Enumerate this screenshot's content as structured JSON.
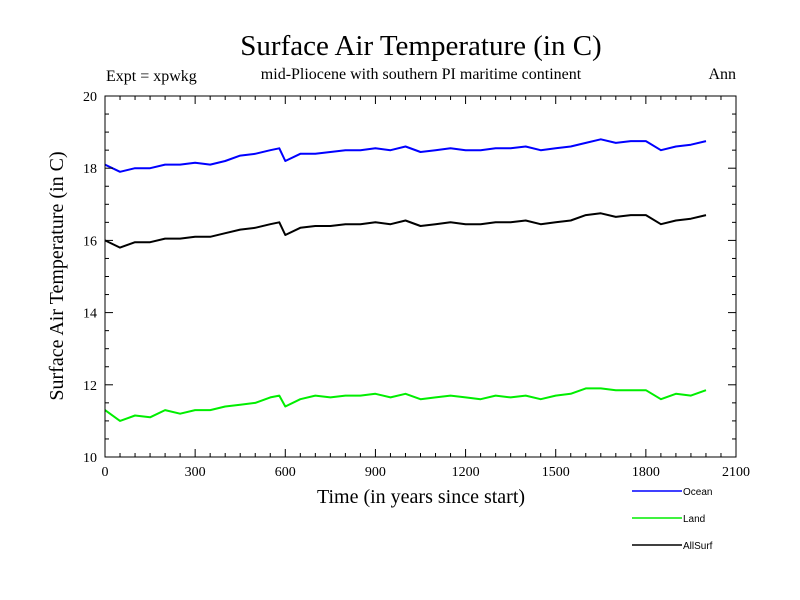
{
  "chart_data": {
    "type": "line",
    "title": "Surface Air Temperature (in C)",
    "subtitle_left": "Expt = xpwkg",
    "subtitle_center": "mid-Pliocene with southern PI maritime continent",
    "subtitle_right": "Ann",
    "xlabel": "Time (in years since start)",
    "ylabel": "Surface Air Temperature (in C)",
    "xlim": [
      0,
      2100
    ],
    "ylim": [
      10,
      20
    ],
    "x_ticks": [
      0,
      300,
      600,
      900,
      1200,
      1500,
      1800,
      2100
    ],
    "x_tick_labels": [
      "0",
      "300",
      "600",
      "900",
      "1200",
      "1500",
      "1800",
      "2100"
    ],
    "y_ticks": [
      10,
      12,
      14,
      16,
      18,
      20
    ],
    "y_tick_labels": [
      "10",
      "12",
      "14",
      "16",
      "18",
      "20"
    ],
    "grid": false,
    "legend_position": "bottom-right-outside",
    "x": [
      0,
      50,
      100,
      150,
      200,
      250,
      300,
      350,
      400,
      450,
      500,
      550,
      580,
      600,
      650,
      700,
      750,
      800,
      850,
      900,
      950,
      1000,
      1050,
      1100,
      1150,
      1200,
      1250,
      1300,
      1350,
      1400,
      1450,
      1500,
      1550,
      1600,
      1650,
      1700,
      1750,
      1800,
      1850,
      1900,
      1950,
      2000
    ],
    "series": [
      {
        "name": "Ocean",
        "color": "#0000ff",
        "values": [
          18.1,
          17.9,
          18.0,
          18.0,
          18.1,
          18.1,
          18.15,
          18.1,
          18.2,
          18.35,
          18.4,
          18.5,
          18.55,
          18.2,
          18.4,
          18.4,
          18.45,
          18.5,
          18.5,
          18.55,
          18.5,
          18.6,
          18.45,
          18.5,
          18.55,
          18.5,
          18.5,
          18.55,
          18.55,
          18.6,
          18.5,
          18.55,
          18.6,
          18.7,
          18.8,
          18.7,
          18.75,
          18.75,
          18.5,
          18.6,
          18.65,
          18.75
        ]
      },
      {
        "name": "Land",
        "color": "#00ee00",
        "values": [
          11.3,
          11.0,
          11.15,
          11.1,
          11.3,
          11.2,
          11.3,
          11.3,
          11.4,
          11.45,
          11.5,
          11.65,
          11.7,
          11.4,
          11.6,
          11.7,
          11.65,
          11.7,
          11.7,
          11.75,
          11.65,
          11.75,
          11.6,
          11.65,
          11.7,
          11.65,
          11.6,
          11.7,
          11.65,
          11.7,
          11.6,
          11.7,
          11.75,
          11.9,
          11.9,
          11.85,
          11.85,
          11.85,
          11.6,
          11.75,
          11.7,
          11.85
        ]
      },
      {
        "name": "AllSurf",
        "color": "#000000",
        "values": [
          16.0,
          15.8,
          15.95,
          15.95,
          16.05,
          16.05,
          16.1,
          16.1,
          16.2,
          16.3,
          16.35,
          16.45,
          16.5,
          16.15,
          16.35,
          16.4,
          16.4,
          16.45,
          16.45,
          16.5,
          16.45,
          16.55,
          16.4,
          16.45,
          16.5,
          16.45,
          16.45,
          16.5,
          16.5,
          16.55,
          16.45,
          16.5,
          16.55,
          16.7,
          16.75,
          16.65,
          16.7,
          16.7,
          16.45,
          16.55,
          16.6,
          16.7
        ]
      }
    ]
  }
}
